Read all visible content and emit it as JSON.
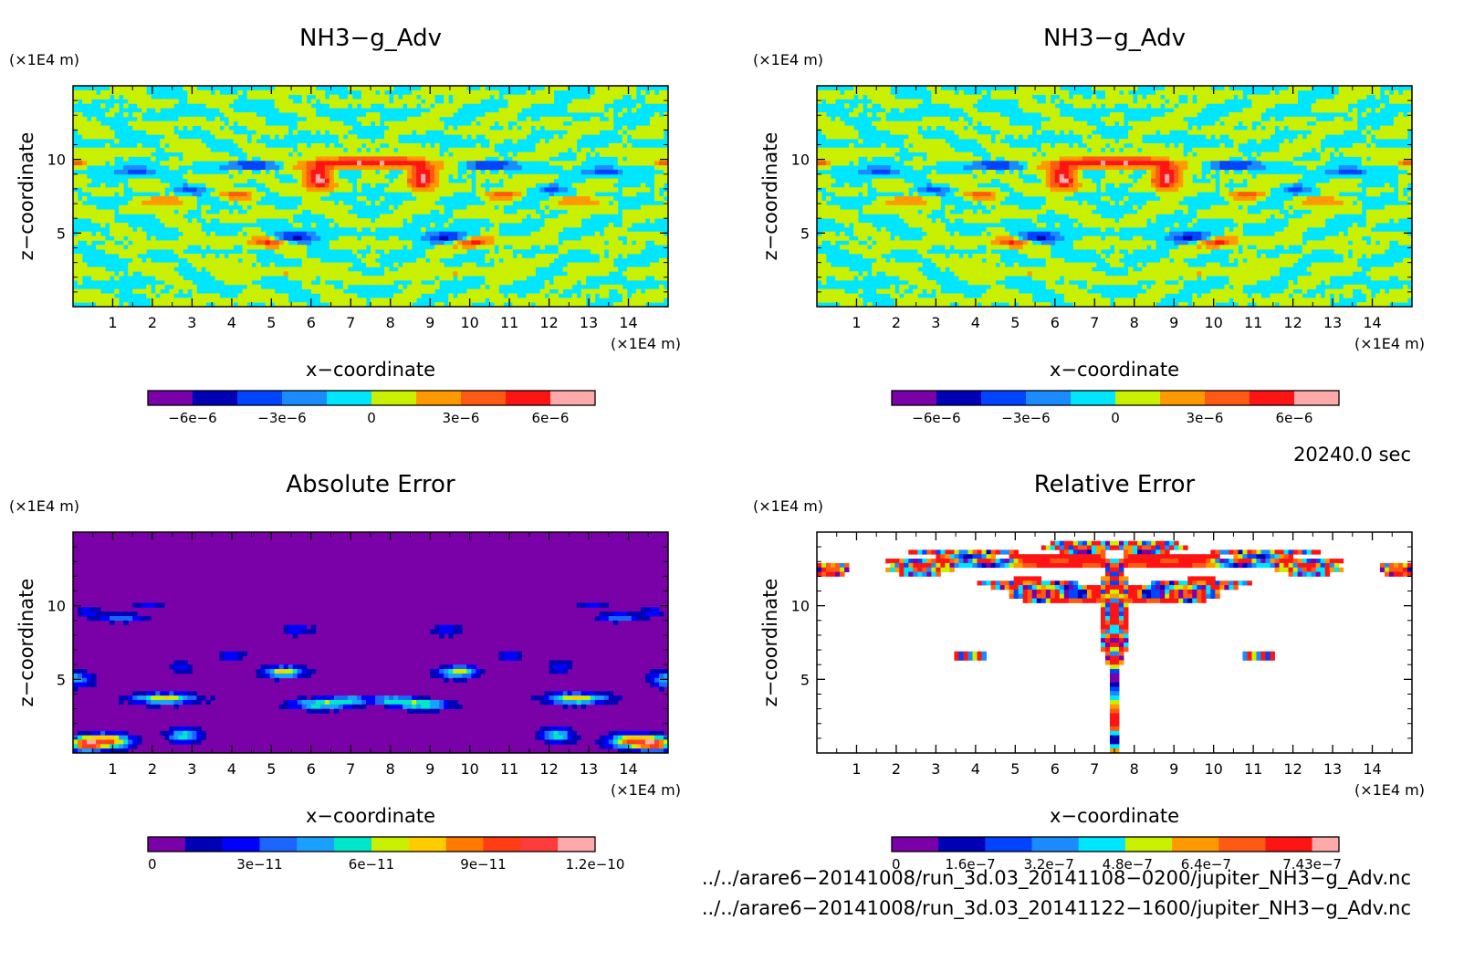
{
  "chart_data": [
    {
      "type": "heatmap",
      "title": "NH3−g_Adv",
      "xlabel": "x−coordinate",
      "ylabel": "z−coordinate",
      "x_unit": "(×1E4 m)",
      "y_unit": "(×1E4 m)",
      "xlim": [
        0,
        15
      ],
      "ylim": [
        0,
        15
      ],
      "x_ticks": [
        "1",
        "2",
        "3",
        "4",
        "5",
        "6",
        "7",
        "8",
        "9",
        "10",
        "11",
        "12",
        "13",
        "14"
      ],
      "y_ticks": [
        "5",
        "10"
      ],
      "colorbar": {
        "ticks": [
          "−6e−6",
          "−3e−6",
          "0",
          "3e−6",
          "6e−6"
        ],
        "colors": [
          "#7a00a8",
          "#0000b4",
          "#0044ff",
          "#1a8cff",
          "#00e6ff",
          "#c8f000",
          "#ff9900",
          "#ff5a14",
          "#ff1414",
          "#ffaaaa"
        ]
      },
      "background": "#00e6ff",
      "field": "flow"
    },
    {
      "type": "heatmap",
      "title": "NH3−g_Adv",
      "xlabel": "x−coordinate",
      "ylabel": "z−coordinate",
      "x_unit": "(×1E4 m)",
      "y_unit": "(×1E4 m)",
      "xlim": [
        0,
        15
      ],
      "ylim": [
        0,
        15
      ],
      "x_ticks": [
        "1",
        "2",
        "3",
        "4",
        "5",
        "6",
        "7",
        "8",
        "9",
        "10",
        "11",
        "12",
        "13",
        "14"
      ],
      "y_ticks": [
        "5",
        "10"
      ],
      "colorbar": {
        "ticks": [
          "−6e−6",
          "−3e−6",
          "0",
          "3e−6",
          "6e−6"
        ],
        "colors": [
          "#7a00a8",
          "#0000b4",
          "#0044ff",
          "#1a8cff",
          "#00e6ff",
          "#c8f000",
          "#ff9900",
          "#ff5a14",
          "#ff1414",
          "#ffaaaa"
        ]
      },
      "background": "#00e6ff",
      "field": "flow"
    },
    {
      "type": "heatmap",
      "title": "Absolute Error",
      "xlabel": "x−coordinate",
      "ylabel": "z−coordinate",
      "x_unit": "(×1E4 m)",
      "y_unit": "(×1E4 m)",
      "xlim": [
        0,
        15
      ],
      "ylim": [
        0,
        15
      ],
      "x_ticks": [
        "1",
        "2",
        "3",
        "4",
        "5",
        "6",
        "7",
        "8",
        "9",
        "10",
        "11",
        "12",
        "13",
        "14"
      ],
      "y_ticks": [
        "5",
        "10"
      ],
      "colorbar": {
        "ticks": [
          "0",
          "3e−11",
          "6e−11",
          "9e−11",
          "1.2e−10"
        ],
        "colors": [
          "#7a00a8",
          "#0000b4",
          "#0000ff",
          "#1a66ff",
          "#1aa0ff",
          "#00e6c8",
          "#c8f000",
          "#ffcc00",
          "#ff7a00",
          "#ff3c14",
          "#ff3c3c",
          "#ffaaaa"
        ]
      },
      "background": "#7a00a8",
      "field": "abs"
    },
    {
      "type": "heatmap",
      "title": "Relative Error",
      "xlabel": "x−coordinate",
      "ylabel": "z−coordinate",
      "x_unit": "(×1E4 m)",
      "y_unit": "(×1E4 m)",
      "xlim": [
        0,
        15
      ],
      "ylim": [
        0,
        15
      ],
      "x_ticks": [
        "1",
        "2",
        "3",
        "4",
        "5",
        "6",
        "7",
        "8",
        "9",
        "10",
        "11",
        "12",
        "13",
        "14"
      ],
      "y_ticks": [
        "5",
        "10"
      ],
      "colorbar": {
        "ticks": [
          "0",
          "1.6e−7",
          "3.2e−7",
          "4.8e−7",
          "6.4e−7",
          "7.43e−7"
        ],
        "colors": [
          "#7a00a8",
          "#0000b4",
          "#0044ff",
          "#1a8cff",
          "#00e6ff",
          "#c8f000",
          "#ff9900",
          "#ff5a14",
          "#ff1414",
          "#ffaaaa"
        ],
        "max_fraction": 0.94
      },
      "background": "#ffffff",
      "field": "rel"
    }
  ],
  "time_label": "20240.0 sec",
  "files": [
    "../../arare6−20141008/run_3d.03_20141108−0200/jupiter_NH3−g_Adv.nc",
    "../../arare6−20141008/run_3d.03_20141122−1600/jupiter_NH3−g_Adv.nc"
  ]
}
